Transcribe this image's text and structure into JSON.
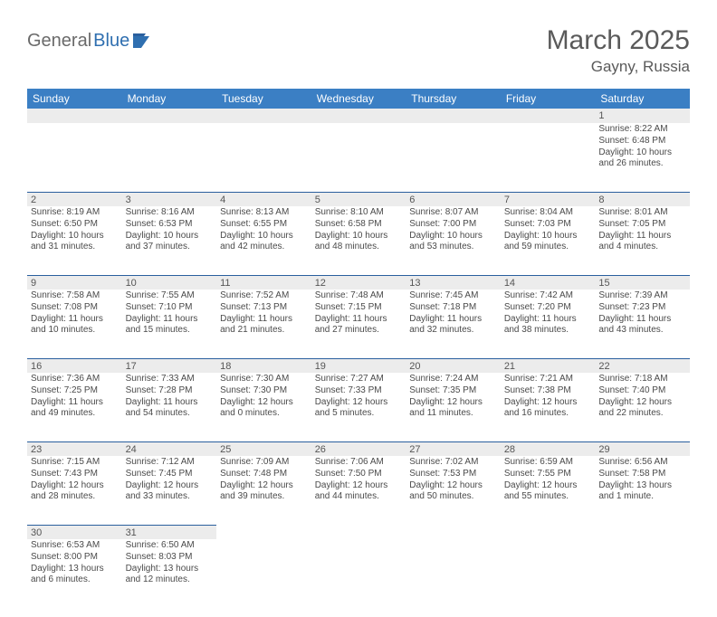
{
  "logo": {
    "part1": "General",
    "part2": "Blue"
  },
  "title": "March 2025",
  "location": "Gayny, Russia",
  "colors": {
    "header_bg": "#3b7fc4",
    "header_text": "#ffffff",
    "daynum_bg": "#ececec",
    "divider": "#2a5f9e",
    "body_text": "#4a4a4a",
    "logo_gray": "#6a6a6a",
    "logo_blue": "#2f6fb0",
    "title_text": "#5a5a5a"
  },
  "weekdays": [
    "Sunday",
    "Monday",
    "Tuesday",
    "Wednesday",
    "Thursday",
    "Friday",
    "Saturday"
  ],
  "weeks": [
    [
      null,
      null,
      null,
      null,
      null,
      null,
      {
        "n": "1",
        "sr": "Sunrise: 8:22 AM",
        "ss": "Sunset: 6:48 PM",
        "dl": "Daylight: 10 hours and 26 minutes."
      }
    ],
    [
      {
        "n": "2",
        "sr": "Sunrise: 8:19 AM",
        "ss": "Sunset: 6:50 PM",
        "dl": "Daylight: 10 hours and 31 minutes."
      },
      {
        "n": "3",
        "sr": "Sunrise: 8:16 AM",
        "ss": "Sunset: 6:53 PM",
        "dl": "Daylight: 10 hours and 37 minutes."
      },
      {
        "n": "4",
        "sr": "Sunrise: 8:13 AM",
        "ss": "Sunset: 6:55 PM",
        "dl": "Daylight: 10 hours and 42 minutes."
      },
      {
        "n": "5",
        "sr": "Sunrise: 8:10 AM",
        "ss": "Sunset: 6:58 PM",
        "dl": "Daylight: 10 hours and 48 minutes."
      },
      {
        "n": "6",
        "sr": "Sunrise: 8:07 AM",
        "ss": "Sunset: 7:00 PM",
        "dl": "Daylight: 10 hours and 53 minutes."
      },
      {
        "n": "7",
        "sr": "Sunrise: 8:04 AM",
        "ss": "Sunset: 7:03 PM",
        "dl": "Daylight: 10 hours and 59 minutes."
      },
      {
        "n": "8",
        "sr": "Sunrise: 8:01 AM",
        "ss": "Sunset: 7:05 PM",
        "dl": "Daylight: 11 hours and 4 minutes."
      }
    ],
    [
      {
        "n": "9",
        "sr": "Sunrise: 7:58 AM",
        "ss": "Sunset: 7:08 PM",
        "dl": "Daylight: 11 hours and 10 minutes."
      },
      {
        "n": "10",
        "sr": "Sunrise: 7:55 AM",
        "ss": "Sunset: 7:10 PM",
        "dl": "Daylight: 11 hours and 15 minutes."
      },
      {
        "n": "11",
        "sr": "Sunrise: 7:52 AM",
        "ss": "Sunset: 7:13 PM",
        "dl": "Daylight: 11 hours and 21 minutes."
      },
      {
        "n": "12",
        "sr": "Sunrise: 7:48 AM",
        "ss": "Sunset: 7:15 PM",
        "dl": "Daylight: 11 hours and 27 minutes."
      },
      {
        "n": "13",
        "sr": "Sunrise: 7:45 AM",
        "ss": "Sunset: 7:18 PM",
        "dl": "Daylight: 11 hours and 32 minutes."
      },
      {
        "n": "14",
        "sr": "Sunrise: 7:42 AM",
        "ss": "Sunset: 7:20 PM",
        "dl": "Daylight: 11 hours and 38 minutes."
      },
      {
        "n": "15",
        "sr": "Sunrise: 7:39 AM",
        "ss": "Sunset: 7:23 PM",
        "dl": "Daylight: 11 hours and 43 minutes."
      }
    ],
    [
      {
        "n": "16",
        "sr": "Sunrise: 7:36 AM",
        "ss": "Sunset: 7:25 PM",
        "dl": "Daylight: 11 hours and 49 minutes."
      },
      {
        "n": "17",
        "sr": "Sunrise: 7:33 AM",
        "ss": "Sunset: 7:28 PM",
        "dl": "Daylight: 11 hours and 54 minutes."
      },
      {
        "n": "18",
        "sr": "Sunrise: 7:30 AM",
        "ss": "Sunset: 7:30 PM",
        "dl": "Daylight: 12 hours and 0 minutes."
      },
      {
        "n": "19",
        "sr": "Sunrise: 7:27 AM",
        "ss": "Sunset: 7:33 PM",
        "dl": "Daylight: 12 hours and 5 minutes."
      },
      {
        "n": "20",
        "sr": "Sunrise: 7:24 AM",
        "ss": "Sunset: 7:35 PM",
        "dl": "Daylight: 12 hours and 11 minutes."
      },
      {
        "n": "21",
        "sr": "Sunrise: 7:21 AM",
        "ss": "Sunset: 7:38 PM",
        "dl": "Daylight: 12 hours and 16 minutes."
      },
      {
        "n": "22",
        "sr": "Sunrise: 7:18 AM",
        "ss": "Sunset: 7:40 PM",
        "dl": "Daylight: 12 hours and 22 minutes."
      }
    ],
    [
      {
        "n": "23",
        "sr": "Sunrise: 7:15 AM",
        "ss": "Sunset: 7:43 PM",
        "dl": "Daylight: 12 hours and 28 minutes."
      },
      {
        "n": "24",
        "sr": "Sunrise: 7:12 AM",
        "ss": "Sunset: 7:45 PM",
        "dl": "Daylight: 12 hours and 33 minutes."
      },
      {
        "n": "25",
        "sr": "Sunrise: 7:09 AM",
        "ss": "Sunset: 7:48 PM",
        "dl": "Daylight: 12 hours and 39 minutes."
      },
      {
        "n": "26",
        "sr": "Sunrise: 7:06 AM",
        "ss": "Sunset: 7:50 PM",
        "dl": "Daylight: 12 hours and 44 minutes."
      },
      {
        "n": "27",
        "sr": "Sunrise: 7:02 AM",
        "ss": "Sunset: 7:53 PM",
        "dl": "Daylight: 12 hours and 50 minutes."
      },
      {
        "n": "28",
        "sr": "Sunrise: 6:59 AM",
        "ss": "Sunset: 7:55 PM",
        "dl": "Daylight: 12 hours and 55 minutes."
      },
      {
        "n": "29",
        "sr": "Sunrise: 6:56 AM",
        "ss": "Sunset: 7:58 PM",
        "dl": "Daylight: 13 hours and 1 minute."
      }
    ],
    [
      {
        "n": "30",
        "sr": "Sunrise: 6:53 AM",
        "ss": "Sunset: 8:00 PM",
        "dl": "Daylight: 13 hours and 6 minutes."
      },
      {
        "n": "31",
        "sr": "Sunrise: 6:50 AM",
        "ss": "Sunset: 8:03 PM",
        "dl": "Daylight: 13 hours and 12 minutes."
      },
      null,
      null,
      null,
      null,
      null
    ]
  ]
}
